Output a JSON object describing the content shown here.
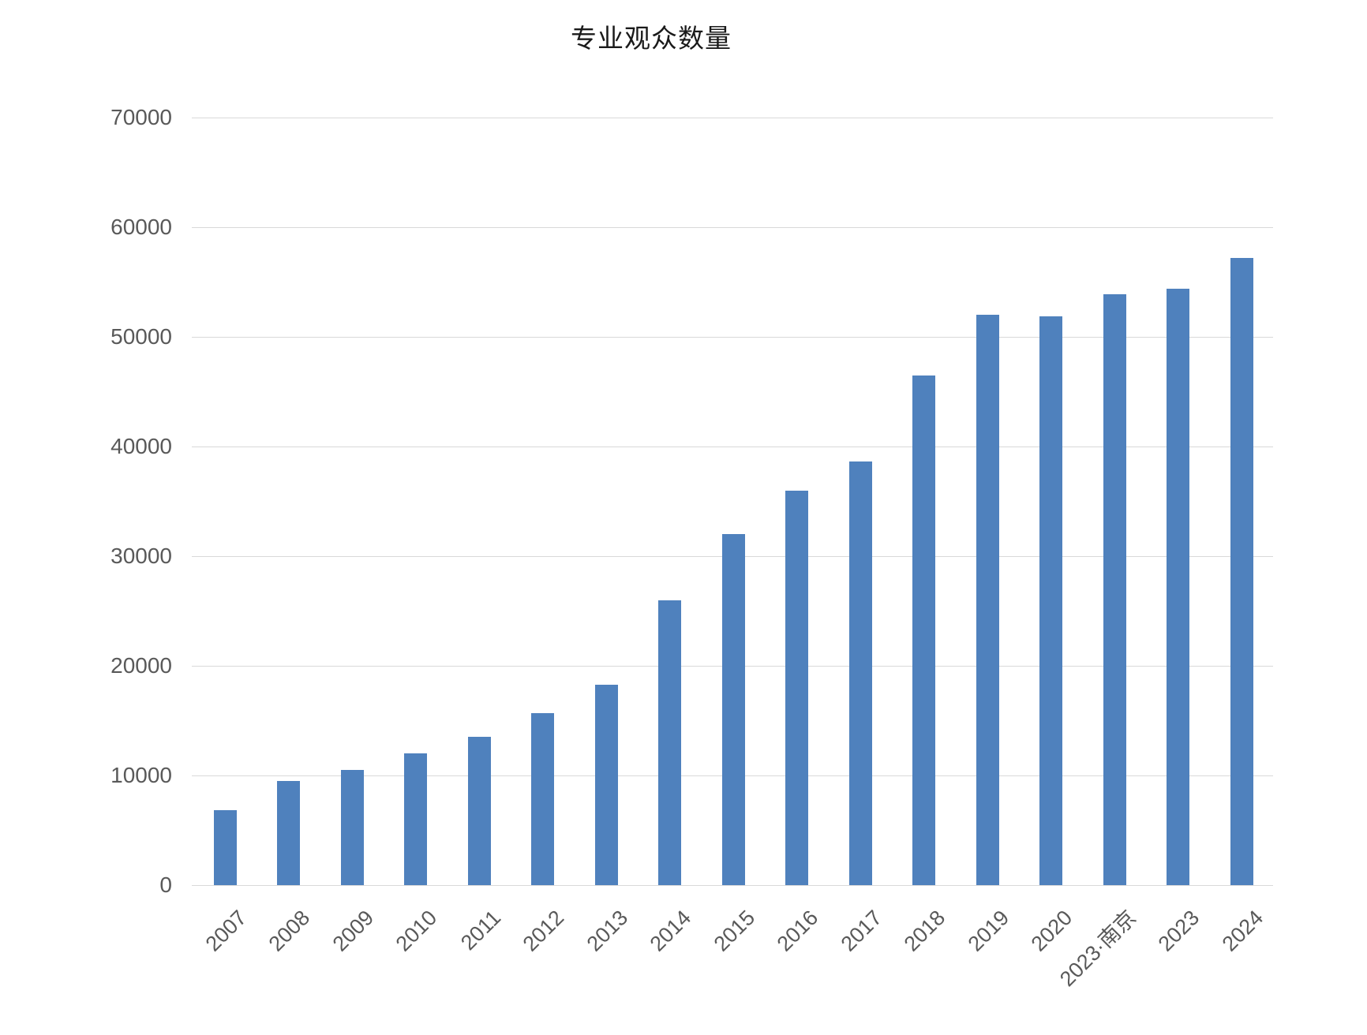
{
  "chart_data": {
    "type": "bar",
    "title": "专业观众数量",
    "categories": [
      "2007",
      "2008",
      "2009",
      "2010",
      "2011",
      "2012",
      "2013",
      "2014",
      "2015",
      "2016",
      "2017",
      "2018",
      "2019",
      "2020",
      "2023·南京",
      "2023",
      "2024"
    ],
    "values": [
      6800,
      9500,
      10500,
      12000,
      13500,
      15700,
      18300,
      26000,
      32000,
      36000,
      38600,
      46500,
      52000,
      51900,
      53900,
      54400,
      57200
    ],
    "xlabel": "",
    "ylabel": "",
    "ylim": [
      0,
      70000
    ],
    "yticks": [
      0,
      10000,
      20000,
      30000,
      40000,
      50000,
      60000,
      70000
    ],
    "grid": true,
    "legend": false,
    "x_label_rotation": -45,
    "bar_color": "#4F81BD",
    "gridline_color": "#D9D9D9",
    "axis_label_color": "#595959",
    "title_color": "#1A1A1A"
  }
}
